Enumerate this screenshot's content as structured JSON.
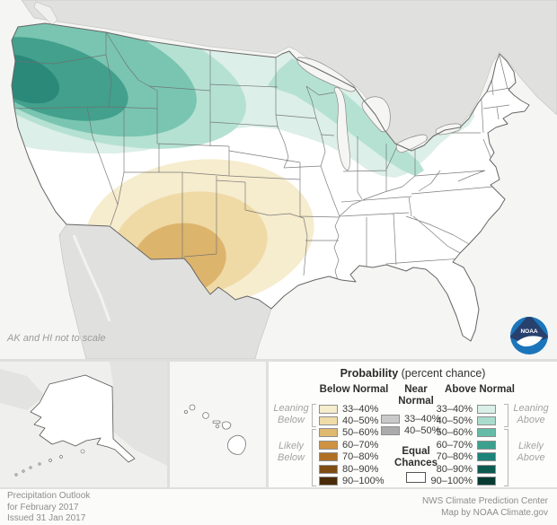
{
  "map": {
    "note": "AK and HI not to scale",
    "ocean_color": "#F5F5F3",
    "foreign_land_color": "#E0E0DE",
    "equal_chances_color": "#FFFFFF",
    "above_band_colors": [
      "#DCEFE8",
      "#B5E1D3",
      "#79C5B1",
      "#42A08C",
      "#2B897A"
    ],
    "below_band_colors": [
      "#F6ECCE",
      "#EFD9A5",
      "#DDB46C"
    ],
    "regions": [
      {
        "area": "Pacific Northwest (WA, OR, ID, W MT)",
        "category": "Above Normal",
        "peak_probability": "70-80%"
      },
      {
        "area": "Northern tier through Upper Midwest and Great Lakes to Ohio Valley",
        "category": "Above Normal",
        "probability": "33-50%"
      },
      {
        "area": "Southwest (AZ, NM, W TX)",
        "category": "Below Normal",
        "peak_probability": "50-60%"
      },
      {
        "area": "Remainder of CONUS, Alaska and Hawaii",
        "category": "Equal Chances"
      }
    ]
  },
  "legend": {
    "title": "Probability",
    "title_suffix": " (percent chance)",
    "below": {
      "header": "Below Normal",
      "rows": [
        {
          "label": "33–40%",
          "color": "#F6ECCE"
        },
        {
          "label": "40–50%",
          "color": "#EFDCA8"
        },
        {
          "label": "50–60%",
          "color": "#DFB96F"
        },
        {
          "label": "60–70%",
          "color": "#CE9242"
        },
        {
          "label": "70–80%",
          "color": "#B06F25"
        },
        {
          "label": "80–90%",
          "color": "#7F4D14"
        },
        {
          "label": "90–100%",
          "color": "#4A2B07"
        }
      ]
    },
    "near": {
      "header_line1": "Near",
      "header_line2": "Normal",
      "rows": [
        {
          "label": "33–40%",
          "color": "#C9C9C9"
        },
        {
          "label": "40–50%",
          "color": "#ABABAB"
        }
      ],
      "equal_line1": "Equal",
      "equal_line2": "Chances",
      "equal_color": "#FFFFFF"
    },
    "above": {
      "header": "Above Normal",
      "rows": [
        {
          "label": "33–40%",
          "color": "#D8F0E7"
        },
        {
          "label": "40–50%",
          "color": "#AADCCD"
        },
        {
          "label": "50–60%",
          "color": "#64BCA8"
        },
        {
          "label": "60–70%",
          "color": "#3BA18E"
        },
        {
          "label": "70–80%",
          "color": "#1B8379"
        },
        {
          "label": "80–90%",
          "color": "#0B5B51"
        },
        {
          "label": "90–100%",
          "color": "#073B32"
        }
      ]
    },
    "group_labels": {
      "leaning_below_1": "Leaning",
      "leaning_below_2": "Below",
      "likely_below_1": "Likely",
      "likely_below_2": "Below",
      "leaning_above_1": "Leaning",
      "leaning_above_2": "Above",
      "likely_above_1": "Likely",
      "likely_above_2": "Above"
    }
  },
  "footer": {
    "left": [
      "Precipitation Outlook",
      "for February 2017",
      "Issued 31 Jan 2017"
    ],
    "right": [
      "NWS Climate Prediction Center",
      "Map by NOAA Climate.gov"
    ]
  },
  "logo": {
    "label": "NOAA"
  }
}
